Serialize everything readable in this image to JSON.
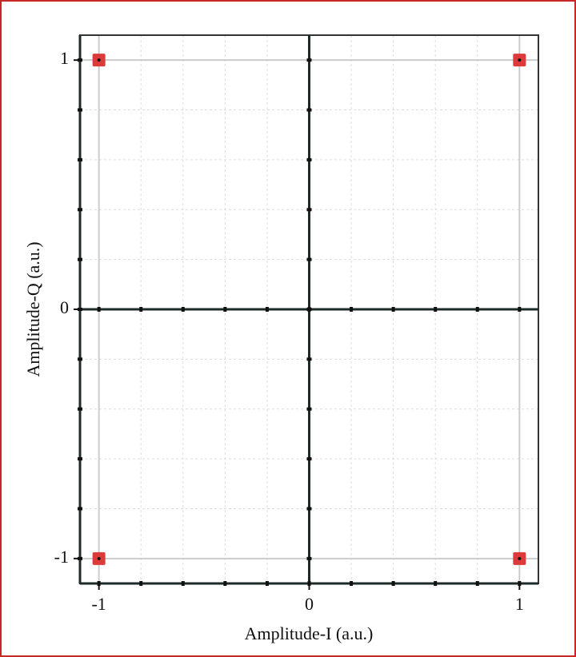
{
  "chart_data": {
    "type": "scatter",
    "x_label": "Amplitude-I (a.u.)",
    "y_label": "Amplitude-Q (a.u.)",
    "x": [
      -1,
      1,
      -1,
      1
    ],
    "values": [
      1,
      1,
      -1,
      -1
    ],
    "color": "#dd3b3b",
    "xlim": [
      -1.09,
      1.09
    ],
    "ylim": [
      -1.1,
      1.1
    ],
    "xticks": [
      -1,
      0,
      1
    ],
    "yticks": [
      -1,
      0,
      1
    ],
    "x_minor_ticks": [
      -1,
      -0.8,
      -0.6,
      -0.4,
      -0.2,
      0,
      0.2,
      0.4,
      0.6,
      0.8,
      1
    ],
    "y_minor_ticks": [
      -1,
      -0.8,
      -0.6,
      -0.4,
      -0.2,
      0,
      0.2,
      0.4,
      0.6,
      0.8,
      1
    ],
    "grid": true
  }
}
